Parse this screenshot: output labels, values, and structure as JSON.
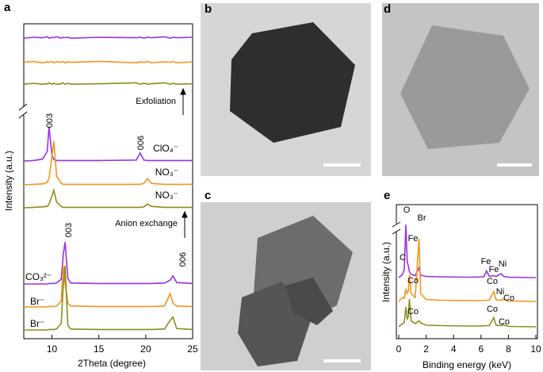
{
  "panel_labels": [
    "a",
    "b",
    "c",
    "d",
    "e"
  ],
  "chart_data": [
    {
      "type": "line",
      "xlabel": "2Theta (degree)",
      "ylabel": "Intensity (a.u.)",
      "xlim": [
        7,
        25
      ],
      "xticks": [
        10,
        15,
        20,
        25
      ],
      "x": [
        7,
        8,
        9,
        9.5,
        9.7,
        10,
        10.2,
        10.5,
        11,
        11.2,
        11.4,
        11.7,
        12,
        15,
        19,
        19.4,
        19.8,
        20.2,
        20.6,
        22,
        22.6,
        22.9,
        23.3,
        25
      ],
      "series": [
        {
          "color": "#9b30e6",
          "values": [
            3,
            5,
            4,
            6,
            3,
            5,
            4,
            6,
            3,
            5,
            4,
            5,
            3,
            5,
            4,
            5,
            3,
            5,
            4,
            6,
            3,
            5,
            4,
            5
          ]
        },
        {
          "color": "#f7941d",
          "values": [
            4,
            6,
            3,
            5,
            4,
            6,
            3,
            5,
            4,
            6,
            3,
            5,
            4,
            6,
            3,
            5,
            4,
            6,
            3,
            5,
            4,
            6,
            3,
            5
          ]
        },
        {
          "color": "#8c8c1e",
          "values": [
            3,
            5,
            3,
            4,
            6,
            3,
            5,
            3,
            4,
            6,
            3,
            5,
            3,
            4,
            6,
            3,
            5,
            3,
            4,
            6,
            3,
            5,
            3,
            4
          ]
        },
        {
          "name": "ClO₄⁻",
          "color": "#9b30e6",
          "values": [
            0,
            1,
            4,
            20,
            72,
            12,
            3,
            1,
            1,
            1,
            1,
            1,
            1,
            1,
            2,
            17,
            2,
            1,
            1,
            1,
            1,
            1,
            1,
            1
          ]
        },
        {
          "name": "NO₃⁻",
          "color": "#f7941d",
          "values": [
            0,
            1,
            2,
            5,
            14,
            60,
            92,
            18,
            3,
            1,
            1,
            1,
            1,
            1,
            1,
            1,
            3,
            13,
            3,
            1,
            1,
            1,
            1,
            1
          ]
        },
        {
          "name": "NO₃⁻",
          "color": "#8c8c1e",
          "values": [
            0,
            1,
            2,
            3,
            8,
            25,
            37,
            12,
            3,
            1,
            1,
            1,
            1,
            1,
            1,
            1,
            2,
            8,
            3,
            1,
            1,
            1,
            1,
            1
          ]
        },
        {
          "name": "CO₃²⁻",
          "color": "#9b30e6",
          "values": [
            0,
            0,
            0,
            0,
            1,
            1,
            1,
            2,
            10,
            60,
            88,
            12,
            2,
            1,
            1,
            1,
            1,
            1,
            1,
            2,
            8,
            17,
            3,
            1
          ]
        },
        {
          "name": "Br⁻",
          "color": "#f7941d",
          "values": [
            0,
            0,
            0,
            0,
            1,
            1,
            1,
            2,
            12,
            87,
            50,
            8,
            2,
            1,
            1,
            1,
            1,
            1,
            1,
            2,
            28,
            8,
            2,
            1
          ]
        },
        {
          "name": "Br⁻",
          "color": "#8c8c1e",
          "values": [
            0,
            0,
            0,
            0,
            1,
            1,
            1,
            2,
            14,
            90,
            135,
            10,
            2,
            1,
            1,
            1,
            1,
            1,
            1,
            2,
            20,
            27,
            3,
            1
          ]
        }
      ],
      "annotations": [
        "003",
        "006",
        "003",
        "006",
        "Exfoliation",
        "Anion exchange"
      ]
    },
    {
      "type": "line",
      "xlabel": "Binding energy (keV)",
      "ylabel": "Intensity (a.u.)",
      "xlim": [
        0,
        10
      ],
      "xticks": [
        0,
        2,
        4,
        6,
        8,
        10
      ],
      "x": [
        0,
        0.28,
        0.4,
        0.52,
        0.62,
        0.7,
        0.78,
        0.9,
        1.2,
        1.48,
        1.6,
        2,
        3,
        5,
        6.2,
        6.4,
        6.6,
        6.93,
        7.1,
        7.47,
        7.65,
        8,
        10
      ],
      "series": [
        {
          "color": "#9b30e6",
          "values": [
            0,
            8,
            20,
            133,
            40,
            30,
            15,
            8,
            5,
            25,
            6,
            3,
            2,
            1,
            2,
            17,
            3,
            5,
            3,
            10,
            3,
            1,
            0
          ]
        },
        {
          "color": "#f7941d",
          "values": [
            0,
            10,
            8,
            30,
            20,
            25,
            67,
            20,
            10,
            158,
            20,
            5,
            3,
            2,
            2,
            3,
            3,
            25,
            4,
            3,
            6,
            1,
            0
          ]
        },
        {
          "color": "#8c8c1e",
          "values": [
            0,
            8,
            10,
            50,
            20,
            25,
            70,
            15,
            8,
            15,
            10,
            4,
            3,
            2,
            2,
            3,
            3,
            23,
            4,
            3,
            5,
            1,
            0
          ]
        }
      ],
      "annotations": [
        "O",
        "Br",
        "Fe",
        "C",
        "Fe",
        "Fe",
        "Ni",
        "Co",
        "Co",
        "Ni",
        "Co",
        "Co",
        "Co",
        "Co"
      ]
    }
  ]
}
